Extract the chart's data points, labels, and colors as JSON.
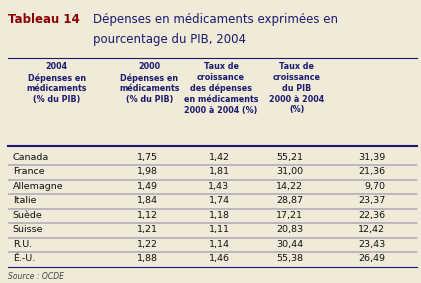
{
  "title_bold": "Tableau 14",
  "title_normal_line1": "Dépenses en médicaments exprimées en",
  "title_normal_line2": "pourcentage du PIB, 2004",
  "title_bold_color": "#8B0000",
  "title_normal_color": "#1a1a6e",
  "columns": [
    "2004\nDépenses en\nmédicaments\n(% du PIB)",
    "2000\nDépenses en\nmédicaments\n(% du PIB)",
    "Taux de\ncroissance\ndes dépenses\nen médicaments\n2000 à 2004 (%)",
    "Taux de\ncroissance\ndu PIB\n2000 à 2004\n(%)"
  ],
  "rows": [
    [
      "Canada",
      "1,75",
      "1,42",
      "55,21",
      "31,39"
    ],
    [
      "France",
      "1,98",
      "1,81",
      "31,00",
      "21,36"
    ],
    [
      "Allemagne",
      "1,49",
      "1,43",
      "14,22",
      "9,70"
    ],
    [
      "Italie",
      "1,84",
      "1,74",
      "28,87",
      "23,37"
    ],
    [
      "Suède",
      "1,12",
      "1,18",
      "17,21",
      "22,36"
    ],
    [
      "Suisse",
      "1,21",
      "1,11",
      "20,83",
      "12,42"
    ],
    [
      "R.U.",
      "1,22",
      "1,14",
      "30,44",
      "23,43"
    ],
    [
      "É.-U.",
      "1,88",
      "1,46",
      "55,38",
      "26,49"
    ]
  ],
  "source": "Source : OCDE",
  "bg_color": "#f0ead8",
  "header_color": "#1a1a6e",
  "row_text_color": "#111111",
  "line_color": "#1a1a6e"
}
